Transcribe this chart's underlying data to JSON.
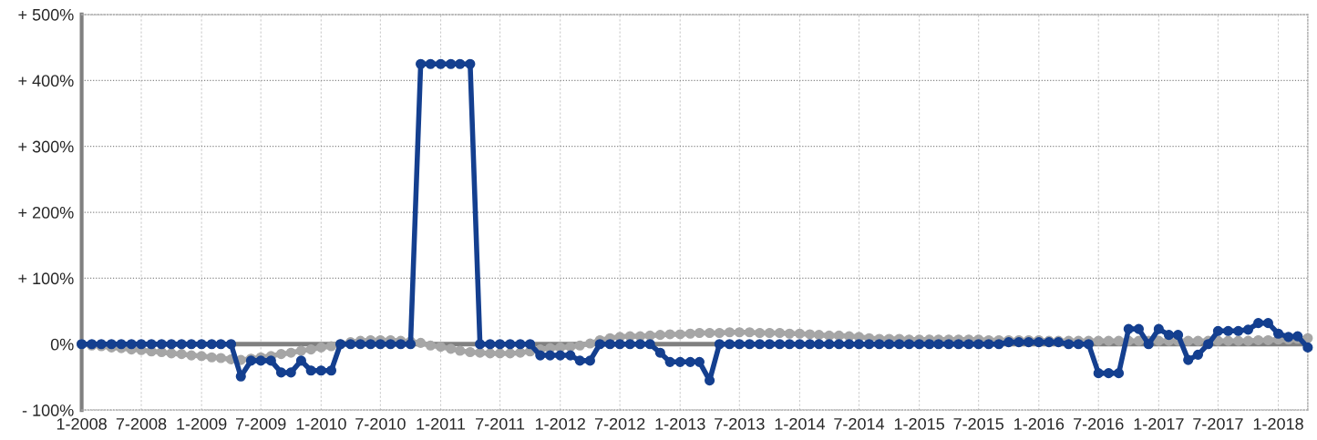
{
  "chart_data": {
    "type": "line",
    "x": [
      "2008-01",
      "2008-02",
      "2008-03",
      "2008-04",
      "2008-05",
      "2008-06",
      "2008-07",
      "2008-08",
      "2008-09",
      "2008-10",
      "2008-11",
      "2008-12",
      "2009-01",
      "2009-02",
      "2009-03",
      "2009-04",
      "2009-05",
      "2009-06",
      "2009-07",
      "2009-08",
      "2009-09",
      "2009-10",
      "2009-11",
      "2009-12",
      "2010-01",
      "2010-02",
      "2010-03",
      "2010-04",
      "2010-05",
      "2010-06",
      "2010-07",
      "2010-08",
      "2010-09",
      "2010-10",
      "2010-11",
      "2010-12",
      "2011-01",
      "2011-02",
      "2011-03",
      "2011-04",
      "2011-05",
      "2011-06",
      "2011-07",
      "2011-08",
      "2011-09",
      "2011-10",
      "2011-11",
      "2011-12",
      "2012-01",
      "2012-02",
      "2012-03",
      "2012-04",
      "2012-05",
      "2012-06",
      "2012-07",
      "2012-08",
      "2012-09",
      "2012-10",
      "2012-11",
      "2012-12",
      "2013-01",
      "2013-02",
      "2013-03",
      "2013-04",
      "2013-05",
      "2013-06",
      "2013-07",
      "2013-08",
      "2013-09",
      "2013-10",
      "2013-11",
      "2013-12",
      "2014-01",
      "2014-02",
      "2014-03",
      "2014-04",
      "2014-05",
      "2014-06",
      "2014-07",
      "2014-08",
      "2014-09",
      "2014-10",
      "2014-11",
      "2014-12",
      "2015-01",
      "2015-02",
      "2015-03",
      "2015-04",
      "2015-05",
      "2015-06",
      "2015-07",
      "2015-08",
      "2015-09",
      "2015-10",
      "2015-11",
      "2015-12",
      "2016-01",
      "2016-02",
      "2016-03",
      "2016-04",
      "2016-05",
      "2016-06",
      "2016-07",
      "2016-08",
      "2016-09",
      "2016-10",
      "2016-11",
      "2016-12",
      "2017-01",
      "2017-02",
      "2017-03",
      "2017-04",
      "2017-05",
      "2017-06",
      "2017-07",
      "2017-08",
      "2017-09",
      "2017-10",
      "2017-11",
      "2017-12",
      "2018-01",
      "2018-02",
      "2018-03",
      "2018-04"
    ],
    "series": [
      {
        "color": "#a6a6a6",
        "values": [
          0,
          -2,
          -3,
          -5,
          -6,
          -8,
          -9,
          -11,
          -12,
          -14,
          -15,
          -17,
          -18,
          -20,
          -21,
          -23,
          -24,
          -22,
          -20,
          -18,
          -15,
          -13,
          -10,
          -8,
          -5,
          -3,
          0,
          3,
          5,
          6,
          6,
          6,
          5,
          4,
          2,
          -2,
          -4,
          -7,
          -10,
          -12,
          -13,
          -14,
          -14,
          -14,
          -13,
          -11,
          -8,
          -6,
          -5,
          -4,
          -2,
          1,
          6,
          9,
          11,
          12,
          12,
          13,
          14,
          15,
          15,
          16,
          17,
          17,
          17,
          18,
          18,
          18,
          17,
          17,
          17,
          16,
          16,
          15,
          14,
          13,
          13,
          12,
          11,
          9,
          8,
          8,
          8,
          7,
          7,
          7,
          7,
          7,
          7,
          7,
          7,
          6,
          6,
          6,
          6,
          6,
          6,
          5,
          5,
          5,
          5,
          5,
          5,
          5,
          5,
          5,
          5,
          5,
          5,
          5,
          5,
          5,
          5,
          5,
          5,
          5,
          5,
          5,
          6,
          6,
          7,
          7,
          8,
          9
        ]
      },
      {
        "color": "#143f8f",
        "values": [
          0,
          0,
          0,
          0,
          0,
          0,
          0,
          0,
          0,
          0,
          0,
          0,
          0,
          0,
          0,
          0,
          -49,
          -25,
          -25,
          -25,
          -43,
          -43,
          -25,
          -40,
          -40,
          -40,
          0,
          0,
          0,
          0,
          0,
          0,
          0,
          0,
          425,
          425,
          425,
          425,
          425,
          425,
          0,
          0,
          0,
          0,
          0,
          0,
          -17,
          -17,
          -17,
          -17,
          -25,
          -25,
          0,
          0,
          0,
          0,
          0,
          0,
          -13,
          -27,
          -27,
          -27,
          -27,
          -55,
          0,
          0,
          0,
          0,
          0,
          0,
          0,
          0,
          0,
          0,
          0,
          0,
          0,
          0,
          0,
          0,
          0,
          0,
          0,
          0,
          0,
          0,
          0,
          0,
          0,
          0,
          0,
          0,
          0,
          3,
          3,
          3,
          3,
          3,
          3,
          0,
          0,
          0,
          -44,
          -44,
          -44,
          23,
          23,
          0,
          23,
          14,
          14,
          -24,
          -16,
          0,
          20,
          20,
          20,
          22,
          32,
          32,
          16,
          11,
          12,
          -5
        ]
      }
    ],
    "xlim": [
      "2008-01",
      "2018-04"
    ],
    "xticks": [
      {
        "value": "2008-01",
        "label": "1-2008"
      },
      {
        "value": "2008-07",
        "label": "7-2008"
      },
      {
        "value": "2009-01",
        "label": "1-2009"
      },
      {
        "value": "2009-07",
        "label": "7-2009"
      },
      {
        "value": "2010-01",
        "label": "1-2010"
      },
      {
        "value": "2010-07",
        "label": "7-2010"
      },
      {
        "value": "2011-01",
        "label": "1-2011"
      },
      {
        "value": "2011-07",
        "label": "7-2011"
      },
      {
        "value": "2012-01",
        "label": "1-2012"
      },
      {
        "value": "2012-07",
        "label": "7-2012"
      },
      {
        "value": "2013-01",
        "label": "1-2013"
      },
      {
        "value": "2013-07",
        "label": "7-2013"
      },
      {
        "value": "2014-01",
        "label": "1-2014"
      },
      {
        "value": "2014-07",
        "label": "7-2014"
      },
      {
        "value": "2015-01",
        "label": "1-2015"
      },
      {
        "value": "2015-07",
        "label": "7-2015"
      },
      {
        "value": "2016-01",
        "label": "1-2016"
      },
      {
        "value": "2016-07",
        "label": "7-2016"
      },
      {
        "value": "2017-01",
        "label": "1-2017"
      },
      {
        "value": "2017-07",
        "label": "7-2017"
      },
      {
        "value": "2018-01",
        "label": "1-2018"
      }
    ],
    "ylim": [
      -100,
      500
    ],
    "yticks": [
      {
        "value": -100,
        "label": "- 100%"
      },
      {
        "value": 0,
        "label": "0%"
      },
      {
        "value": 100,
        "label": "+ 100%"
      },
      {
        "value": 200,
        "label": "+ 200%"
      },
      {
        "value": 300,
        "label": "+ 300%"
      },
      {
        "value": 400,
        "label": "+ 400%"
      },
      {
        "value": 500,
        "label": "+ 500%"
      }
    ],
    "ref_lines": [
      {
        "axis": "y",
        "value": 0,
        "color": "#808080"
      }
    ],
    "grid": true,
    "marker": "circle",
    "line_style": "solid"
  }
}
